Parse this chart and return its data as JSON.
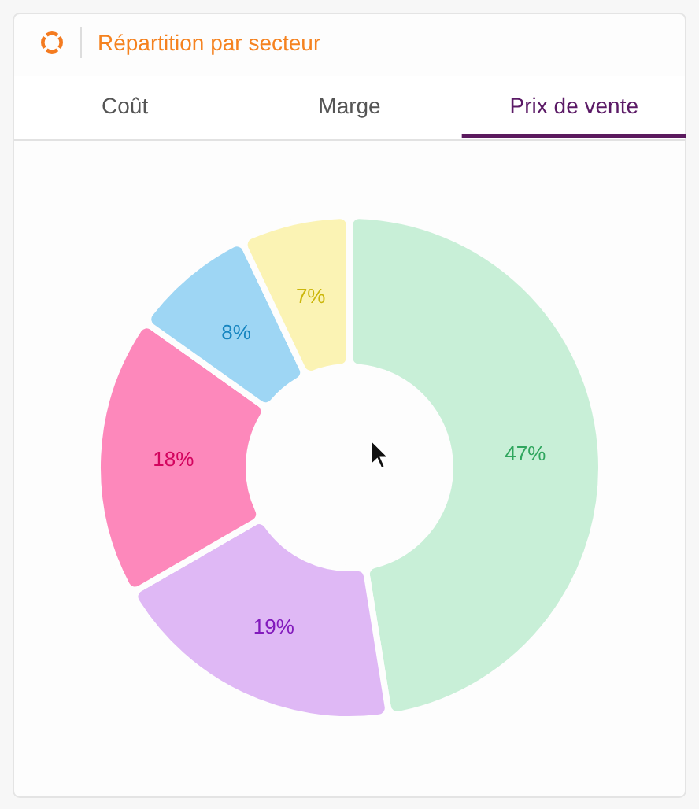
{
  "chart_data": {
    "type": "donut",
    "title": "Répartition par secteur",
    "subtitle": "Prix de vente",
    "annotations": [
      "Coût",
      "Marge"
    ],
    "categories": [
      null,
      null,
      null,
      null,
      null
    ],
    "values": [
      47,
      19,
      18,
      8,
      7
    ],
    "colors": [
      "#c8efd7",
      "#dfb8f5",
      "#fd88bb",
      "#9ed6f4",
      "#fbf3b4"
    ],
    "value_labels": [
      "47%",
      "19%",
      "18%",
      "8%",
      "7%"
    ]
  }
}
